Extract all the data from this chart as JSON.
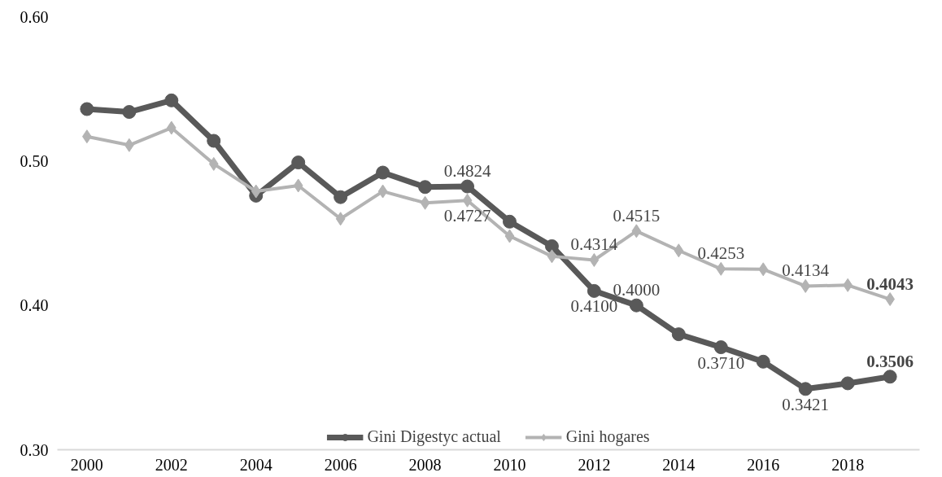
{
  "chart_data": {
    "type": "line",
    "x": [
      2000,
      2001,
      2002,
      2003,
      2004,
      2005,
      2006,
      2007,
      2008,
      2009,
      2010,
      2011,
      2012,
      2013,
      2014,
      2015,
      2016,
      2017,
      2018,
      2019
    ],
    "series": [
      {
        "name": "Gini Digestyc actual",
        "color": "#595959",
        "marker": "circle",
        "values": [
          0.536,
          0.534,
          0.542,
          0.514,
          0.476,
          0.499,
          0.475,
          0.492,
          0.482,
          0.4824,
          0.458,
          0.441,
          0.41,
          0.4,
          0.38,
          0.371,
          0.361,
          0.3421,
          0.346,
          0.3506
        ],
        "value_labels": [
          null,
          null,
          null,
          null,
          null,
          null,
          null,
          null,
          null,
          "0.4824",
          null,
          null,
          "0.4100",
          "0.4000",
          null,
          "0.3710",
          null,
          "0.3421",
          null,
          "0.3506"
        ]
      },
      {
        "name": "Gini hogares",
        "color": "#b3b3b3",
        "marker": "diamond",
        "values": [
          0.517,
          0.511,
          0.523,
          0.498,
          0.479,
          0.483,
          0.46,
          0.479,
          0.471,
          0.4727,
          0.448,
          0.434,
          0.4314,
          0.4515,
          0.438,
          0.4253,
          0.425,
          0.4134,
          0.414,
          0.4043
        ],
        "value_labels": [
          null,
          null,
          null,
          null,
          null,
          null,
          null,
          null,
          null,
          "0.4727",
          null,
          null,
          "0.4314",
          "0.4515",
          null,
          "0.4253",
          null,
          "0.4134",
          null,
          "0.4043"
        ]
      }
    ],
    "xlim": [
      1999.3,
      2019.7
    ],
    "xticks": [
      2000,
      2002,
      2004,
      2006,
      2008,
      2010,
      2012,
      2014,
      2016,
      2018
    ],
    "ylim": [
      0.3,
      0.6
    ],
    "yticks": [
      {
        "value": 0.3,
        "label": "0.30"
      },
      {
        "value": 0.4,
        "label": "0.40"
      },
      {
        "value": 0.5,
        "label": "0.50"
      },
      {
        "value": 0.6,
        "label": "0.60"
      }
    ],
    "grid": false,
    "legend": "bottom",
    "line_style": "solid"
  }
}
